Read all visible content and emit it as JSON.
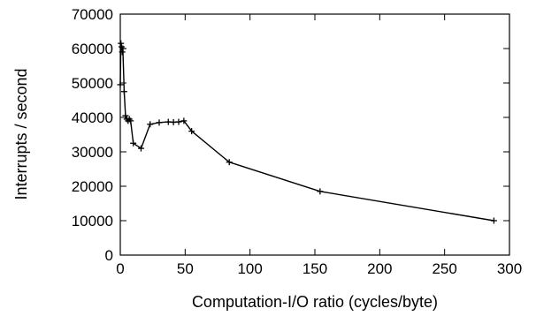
{
  "chart_data": {
    "type": "line",
    "title": "",
    "xlabel": "Computation-I/O ratio (cycles/byte)",
    "ylabel": "Interrupts / second",
    "xlim": [
      0,
      300
    ],
    "ylim": [
      0,
      70000
    ],
    "x_ticks": [
      0,
      50,
      100,
      150,
      200,
      250,
      300
    ],
    "y_ticks": [
      0,
      10000,
      20000,
      30000,
      40000,
      50000,
      60000,
      70000
    ],
    "grid": false,
    "legend": "none",
    "colors": {
      "line": "#000000",
      "marker": "#000000",
      "frame": "#000000"
    },
    "series": [
      {
        "marker": "plus",
        "x": [
          0,
          0.5,
          1,
          1.5,
          2,
          3,
          4,
          5,
          6,
          7,
          8,
          10,
          16,
          23,
          30,
          37,
          41,
          45,
          49,
          55,
          84,
          154,
          288
        ],
        "y": [
          49500,
          61500,
          60500,
          59000,
          60000,
          47500,
          40500,
          39500,
          39000,
          39500,
          39000,
          32500,
          31000,
          38000,
          38500,
          38700,
          38600,
          38700,
          39000,
          36000,
          27000,
          18500,
          10000
        ]
      }
    ]
  }
}
